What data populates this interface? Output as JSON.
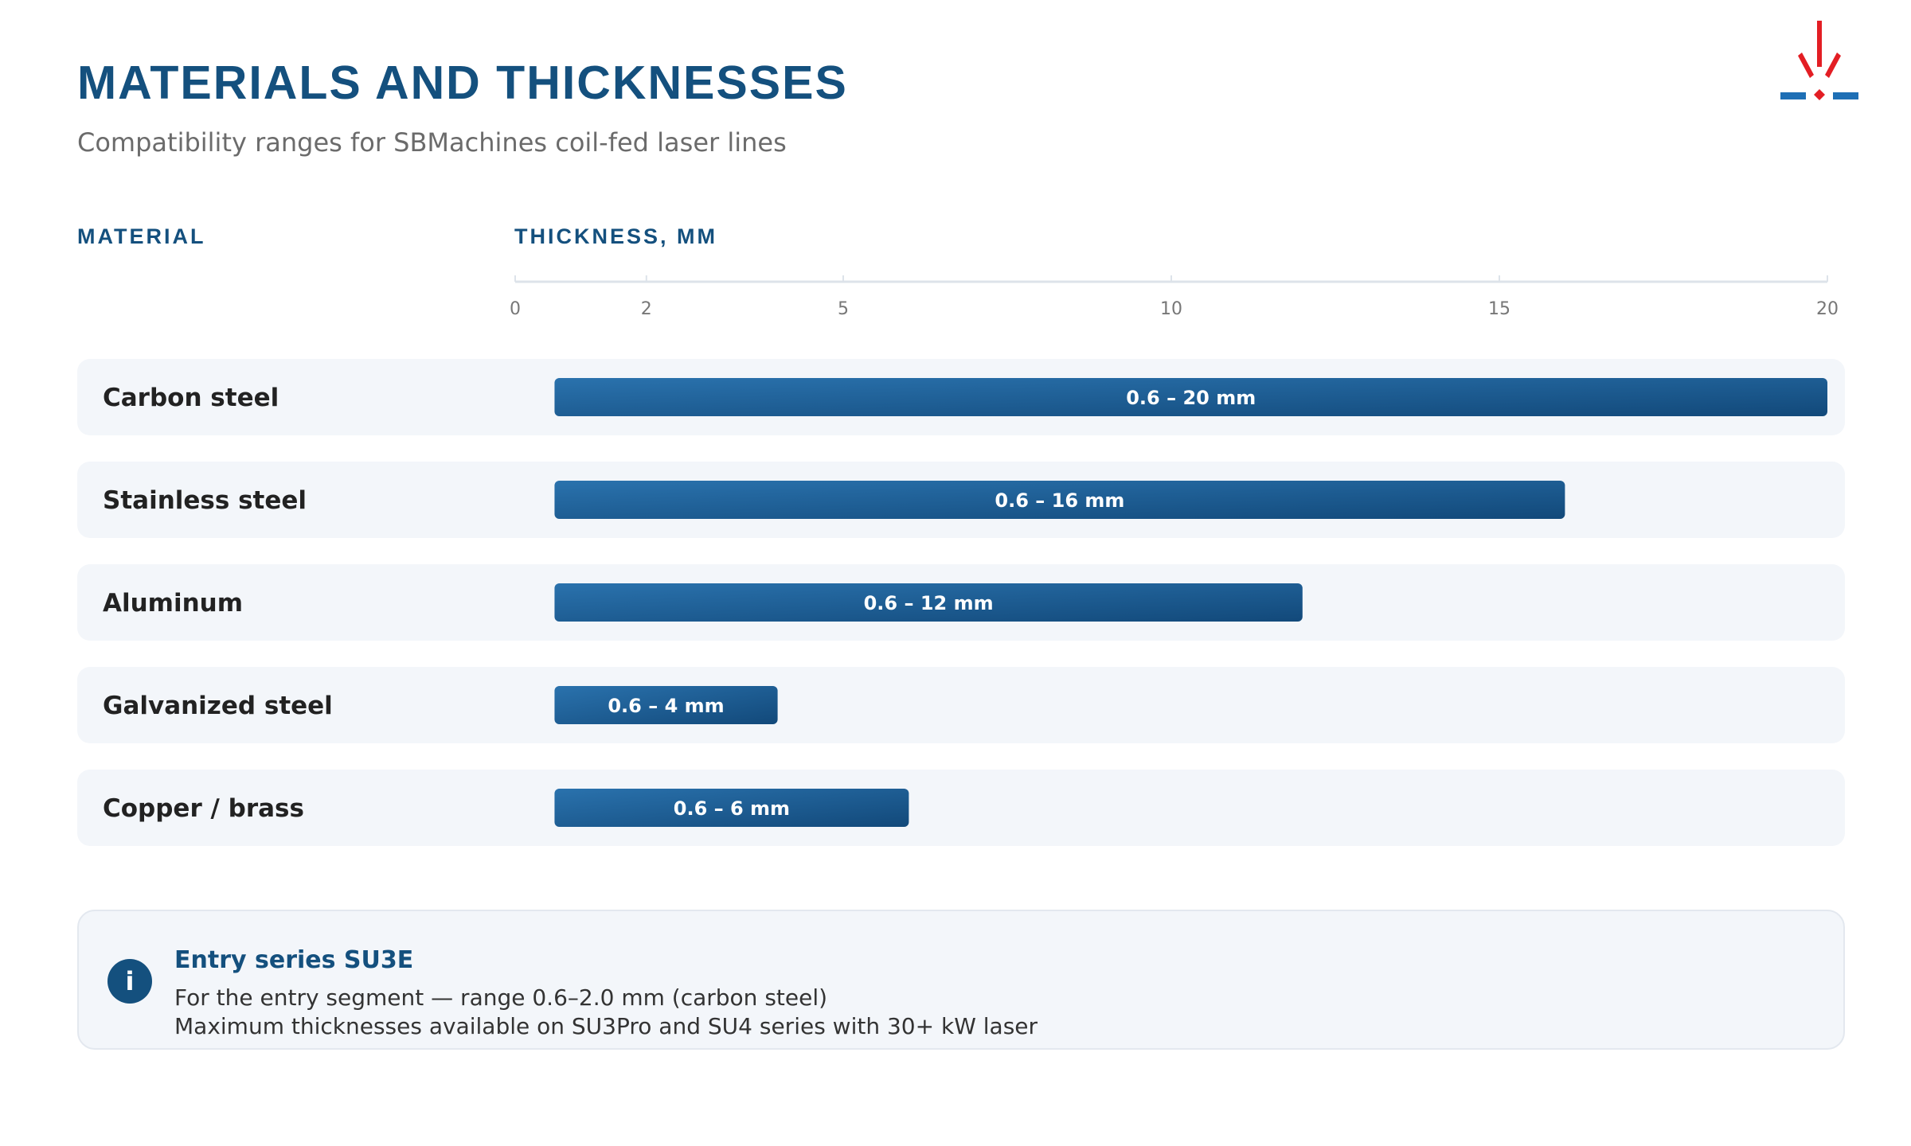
{
  "header": {
    "title": "MATERIALS AND THICKNESSES",
    "subtitle": "Compatibility ranges for SBMachines coil-fed laser lines"
  },
  "columns": {
    "material": "MATERIAL",
    "thickness": "THICKNESS, MM"
  },
  "logo": {
    "icon": "laser-spark-logo",
    "colors": [
      "#e31e24",
      "#1e6fb5"
    ]
  },
  "colors": {
    "accent": "#14507e",
    "bar_start": "#2a72ad",
    "bar_end": "#12497a",
    "row_bg": "#f3f6fa"
  },
  "chart_data": {
    "type": "bar",
    "orientation": "horizontal-range",
    "xlabel": "THICKNESS, MM",
    "xlim": [
      0,
      20
    ],
    "xticks": [
      0,
      2,
      5,
      10,
      15,
      20
    ],
    "grid": false,
    "categories": [
      "Carbon steel",
      "Stainless steel",
      "Aluminum",
      "Galvanized steel",
      "Copper / brass"
    ],
    "ranges": [
      [
        0.6,
        20
      ],
      [
        0.6,
        16
      ],
      [
        0.6,
        12
      ],
      [
        0.6,
        4
      ],
      [
        0.6,
        6
      ]
    ],
    "labels": [
      "0.6 – 20 mm",
      "0.6 – 16 mm",
      "0.6 – 12 mm",
      "0.6 – 4 mm",
      "0.6 – 6 mm"
    ]
  },
  "note": {
    "icon": "info-icon",
    "icon_glyph": "i",
    "title": "Entry series SU3E",
    "line1": "For the entry segment — range 0.6–2.0 mm (carbon steel)",
    "line2": "Maximum thicknesses available on SU3Pro and SU4 series with 30+ kW laser"
  }
}
